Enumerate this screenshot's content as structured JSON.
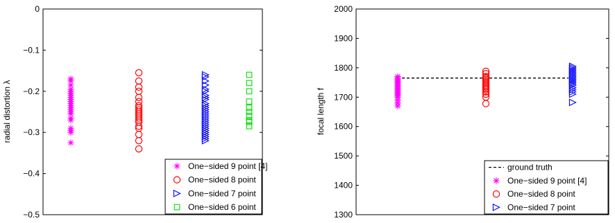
{
  "chart_data": [
    {
      "type": "scatter",
      "title": "",
      "xlabel": "",
      "ylabel": "radial distortion λ",
      "ylim": [
        -0.5,
        0
      ],
      "yticks": [
        "0",
        "−0.1",
        "−0.2",
        "−0.3",
        "−0.4",
        "−0.5"
      ],
      "ytick_values": [
        0,
        -0.1,
        -0.2,
        -0.3,
        -0.4,
        -0.5
      ],
      "grid": false,
      "legend_position": "bottom-right",
      "series": [
        {
          "name": "One−sided 9 point  [4]",
          "marker": "asterisk",
          "color": "#ff00ff",
          "x": 1,
          "values": [
            -0.17,
            -0.175,
            -0.185,
            -0.195,
            -0.2,
            -0.205,
            -0.21,
            -0.215,
            -0.22,
            -0.225,
            -0.23,
            -0.235,
            -0.24,
            -0.245,
            -0.25,
            -0.255,
            -0.265,
            -0.27,
            -0.29,
            -0.295,
            -0.3,
            -0.325
          ]
        },
        {
          "name": "One−sided 8 point",
          "marker": "circle",
          "color": "#ff0000",
          "x": 2,
          "values": [
            -0.155,
            -0.175,
            -0.19,
            -0.2,
            -0.215,
            -0.225,
            -0.235,
            -0.24,
            -0.245,
            -0.25,
            -0.255,
            -0.26,
            -0.265,
            -0.27,
            -0.275,
            -0.285,
            -0.29,
            -0.305,
            -0.32,
            -0.34
          ]
        },
        {
          "name": "One−sided 7 point",
          "marker": "triangle-right",
          "color": "#0000ff",
          "x": 3,
          "values": [
            -0.16,
            -0.165,
            -0.175,
            -0.185,
            -0.195,
            -0.2,
            -0.21,
            -0.215,
            -0.22,
            -0.23,
            -0.235,
            -0.24,
            -0.245,
            -0.25,
            -0.255,
            -0.26,
            -0.265,
            -0.27,
            -0.275,
            -0.28,
            -0.285,
            -0.29,
            -0.295,
            -0.3,
            -0.305,
            -0.31,
            -0.315,
            -0.32
          ]
        },
        {
          "name": "One−sided 6 point",
          "marker": "square",
          "color": "#00dd00",
          "x": 4,
          "values": [
            -0.16,
            -0.18,
            -0.2,
            -0.225,
            -0.24,
            -0.25,
            -0.26,
            -0.27,
            -0.275,
            -0.285
          ]
        }
      ]
    },
    {
      "type": "scatter",
      "title": "",
      "xlabel": "",
      "ylabel": "focal length f",
      "ylim": [
        1300,
        2000
      ],
      "yticks": [
        "1300",
        "1400",
        "1500",
        "1600",
        "1700",
        "1800",
        "1900",
        "2000"
      ],
      "ytick_values": [
        1300,
        1400,
        1500,
        1600,
        1700,
        1800,
        1900,
        2000
      ],
      "grid": false,
      "legend_position": "bottom-right",
      "reference_line": {
        "name": "ground truth",
        "y": 1765,
        "style": "dashed",
        "color": "#000000"
      },
      "series": [
        {
          "name": "One−sided 9 point  [4]",
          "marker": "asterisk",
          "color": "#ff00ff",
          "x": 1,
          "values": [
            1670,
            1680,
            1690,
            1700,
            1705,
            1710,
            1715,
            1720,
            1725,
            1730,
            1735,
            1740,
            1745,
            1750,
            1755,
            1760,
            1765,
            1770
          ]
        },
        {
          "name": "One−sided 8 point",
          "marker": "circle",
          "color": "#ff0000",
          "x": 2,
          "values": [
            1678,
            1700,
            1710,
            1718,
            1725,
            1730,
            1735,
            1740,
            1745,
            1750,
            1755,
            1760,
            1765,
            1770,
            1780,
            1788
          ]
        },
        {
          "name": "One−sided 7 point",
          "marker": "triangle-right",
          "color": "#0000ff",
          "x": 3,
          "values": [
            1682,
            1710,
            1718,
            1725,
            1732,
            1740,
            1745,
            1750,
            1755,
            1760,
            1765,
            1770,
            1775,
            1780,
            1785,
            1790,
            1795,
            1800,
            1805
          ]
        }
      ]
    }
  ]
}
